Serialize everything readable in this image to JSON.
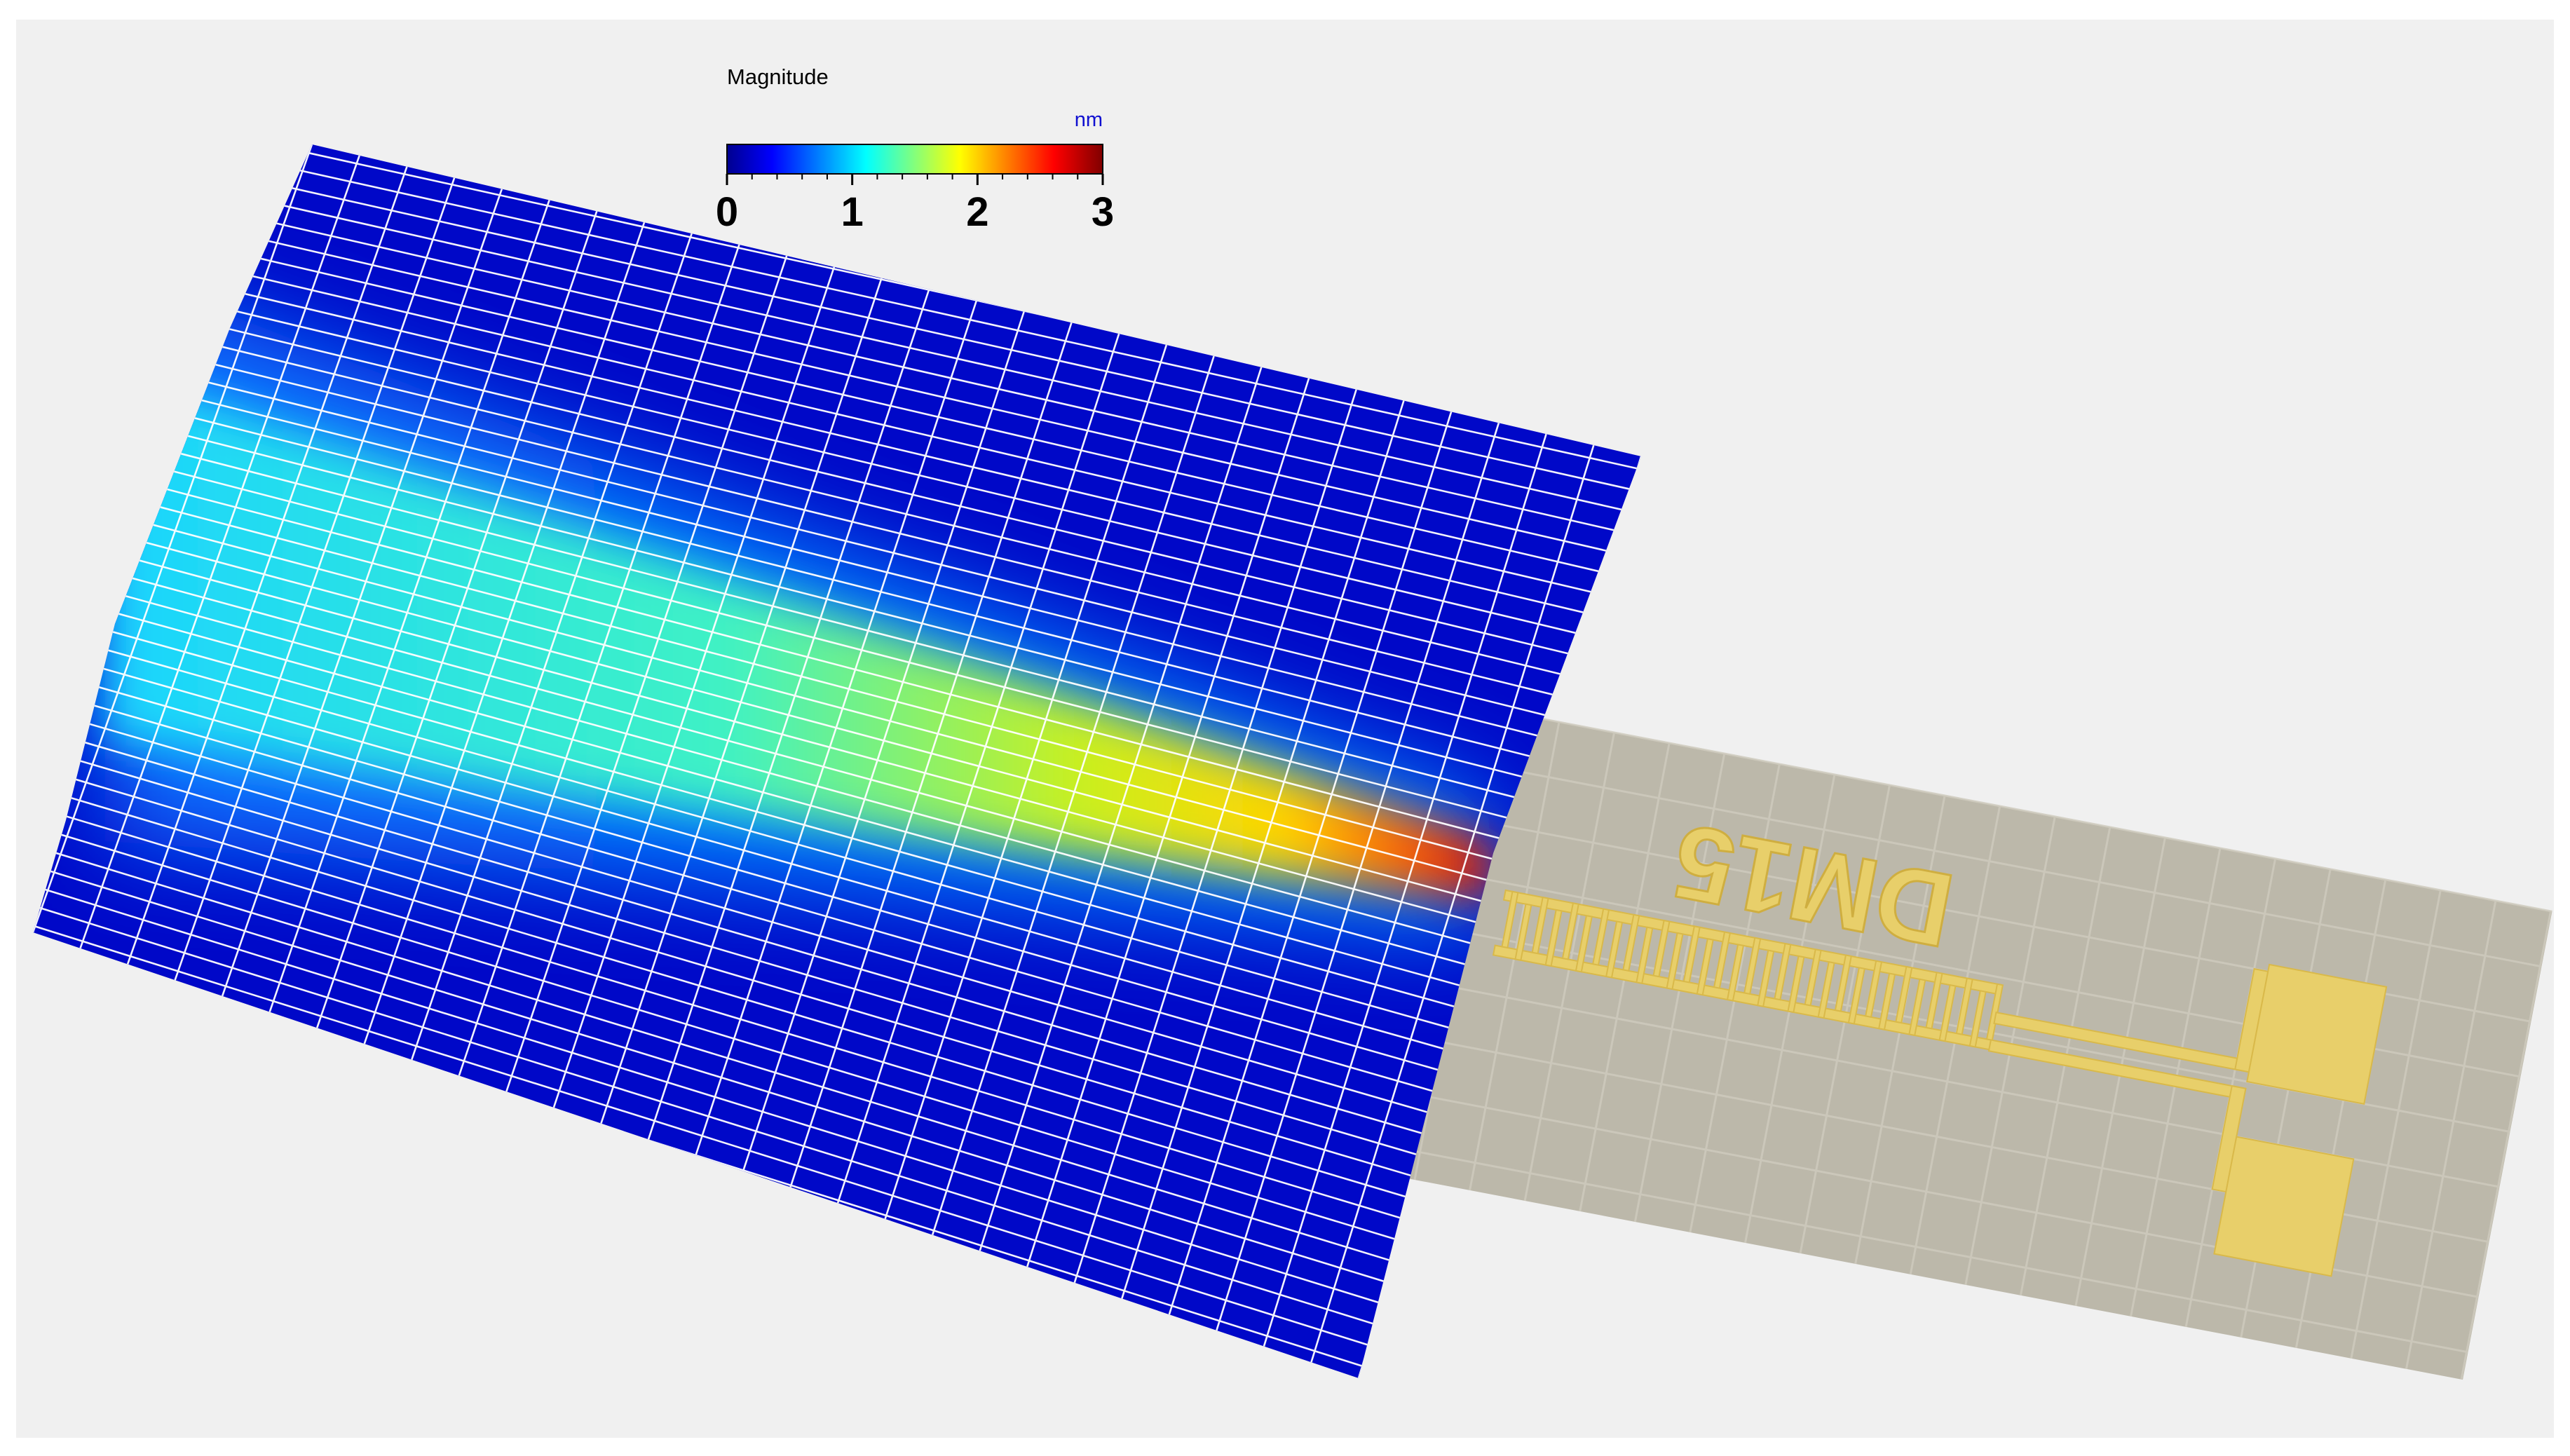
{
  "colorbar": {
    "title": "Magnitude",
    "unit": "nm",
    "range": [
      0,
      3
    ],
    "ticks": [
      0,
      1,
      2,
      3
    ]
  },
  "chip": {
    "label": "DM15"
  }
}
